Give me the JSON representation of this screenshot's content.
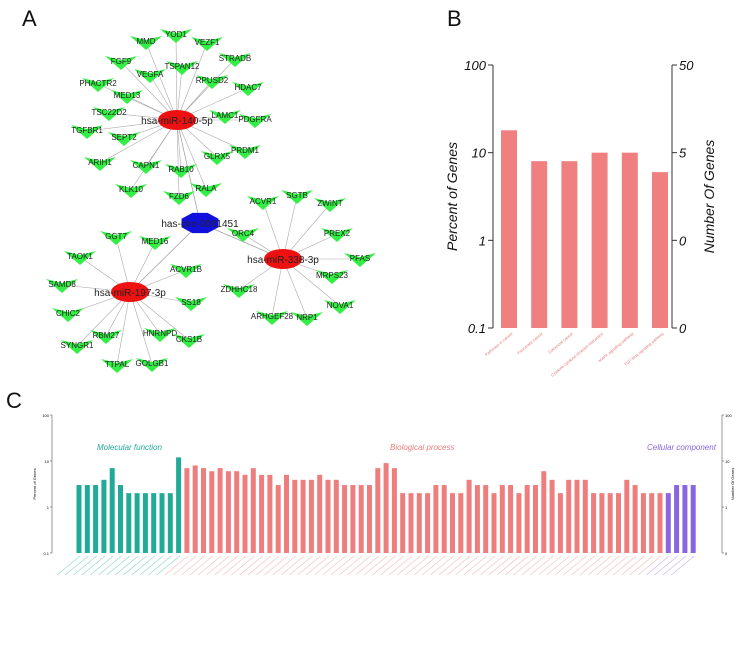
{
  "panels": {
    "a": "A",
    "b": "B",
    "c": "C"
  },
  "colors": {
    "target": "#33ee44",
    "mirna": "#ee1111",
    "circ": "#1111dd",
    "bar_b": "#f08080",
    "mf": "#22aa99",
    "bp": "#ee7d7d",
    "cc": "#8866dd"
  },
  "network": {
    "hubs": [
      {
        "id": "circ",
        "label": "has-circ-0001451",
        "type": "circRNA"
      },
      {
        "id": "m140",
        "label": "hsa-miR-140-5p",
        "type": "miRNA"
      },
      {
        "id": "m197",
        "label": "hsa-miR-197-3p",
        "type": "miRNA"
      },
      {
        "id": "m338",
        "label": "hsa-miR-338-3p",
        "type": "miRNA"
      }
    ],
    "targets": {
      "m140": [
        "YOD1",
        "MMD",
        "VEZF1",
        "FGF9",
        "TSPAN12",
        "STRADB",
        "VEGFA",
        "PHACTR2",
        "RPUSD2",
        "HDAC7",
        "MED13",
        "TSC22D2",
        "LAMC1",
        "PDGFRA",
        "TGFBR1",
        "SEPT2",
        "PRDM1",
        "GLRX5",
        "ARIH1",
        "CAPN1",
        "RAB10",
        "KLK10",
        "RALA",
        "FZD6"
      ],
      "m197": [
        "GGT7",
        "MED16",
        "TAOK1",
        "ACVR1B",
        "SAMD8",
        "SS18",
        "CHIC2",
        "RBM27",
        "HNRNPD",
        "CKS1B",
        "SYNGR1",
        "TTPAL",
        "GOLGB1"
      ],
      "m338": [
        "ACVR1",
        "SGTB",
        "ZWINT",
        "ORC4",
        "PREX2",
        "PFAS",
        "MRPS23",
        "ZDHHC18",
        "NOVA1",
        "ARHGEF28",
        "NRP1"
      ]
    }
  },
  "chart_data": [
    {
      "type": "bar",
      "title": "",
      "ylabel": "Percent of Genes",
      "y2label": "Number Of Genes",
      "yscale": "log",
      "ylim": [
        0.1,
        100
      ],
      "yticks": [
        "100",
        "10",
        "1",
        "0.1"
      ],
      "y2ticks": [
        "50",
        "5",
        "0",
        "0"
      ],
      "categories": [
        "Pathways in cancer",
        "Pancreatic cancer",
        "Colorectal cancer",
        "Cytokine-cytokine receptor interaction",
        "MAPK signaling pathway",
        "TGF-beta signaling pathway"
      ],
      "values": [
        18,
        8,
        8,
        10,
        10,
        6
      ]
    },
    {
      "type": "bar",
      "ylabel": "Percent of Genes",
      "y2label": "Number Of Genes",
      "yscale": "log",
      "ylim": [
        0.1,
        100
      ],
      "yticks": [
        "100",
        "10",
        "1",
        "0.1"
      ],
      "y2ticks": [
        "100",
        "10",
        "1",
        "0"
      ],
      "series": [
        {
          "name": "Molecular function",
          "values": [
            3,
            3,
            3,
            3.9,
            7,
            3,
            2,
            2,
            2,
            2,
            2,
            2,
            12
          ]
        },
        {
          "name": "Biological process",
          "values": [
            7,
            8,
            7,
            6,
            7,
            6,
            6,
            5,
            7,
            5,
            5,
            3,
            5,
            3.9,
            3.9,
            3.9,
            5,
            3.9,
            3.9,
            3,
            3,
            3,
            3,
            7,
            9,
            7,
            2,
            2,
            2,
            2,
            3,
            3,
            2,
            2,
            3.9,
            3,
            3,
            2,
            3,
            3,
            2,
            3,
            3,
            6,
            3.9,
            2,
            3.9,
            3.9,
            3.9,
            2,
            2,
            2,
            2,
            3.9,
            3,
            2,
            2,
            2
          ]
        },
        {
          "name": "Cellular component",
          "values": [
            2,
            3,
            3,
            3
          ]
        }
      ]
    }
  ]
}
